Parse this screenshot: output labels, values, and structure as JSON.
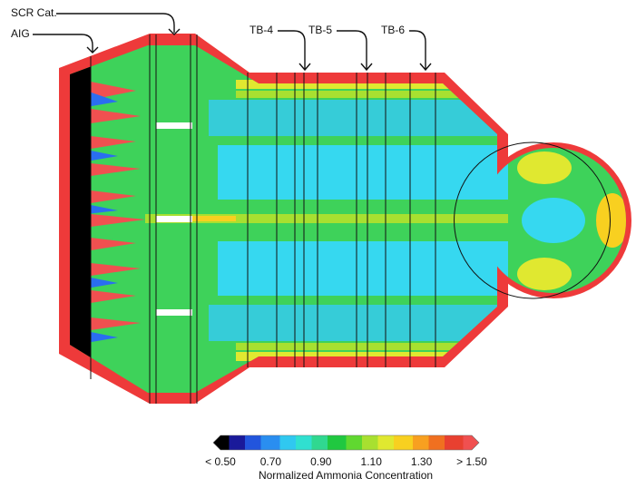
{
  "labels": {
    "scr_cat": "SCR Cat.",
    "aig": "AIG",
    "tb4": "TB-4",
    "tb5": "TB-5",
    "tb6": "TB-6"
  },
  "colorbar": {
    "ticks": [
      "< 0.50",
      "0.70",
      "0.90",
      "1.10",
      "1.30",
      "> 1.50"
    ],
    "title": "Normalized Ammonia Concentration"
  }
}
